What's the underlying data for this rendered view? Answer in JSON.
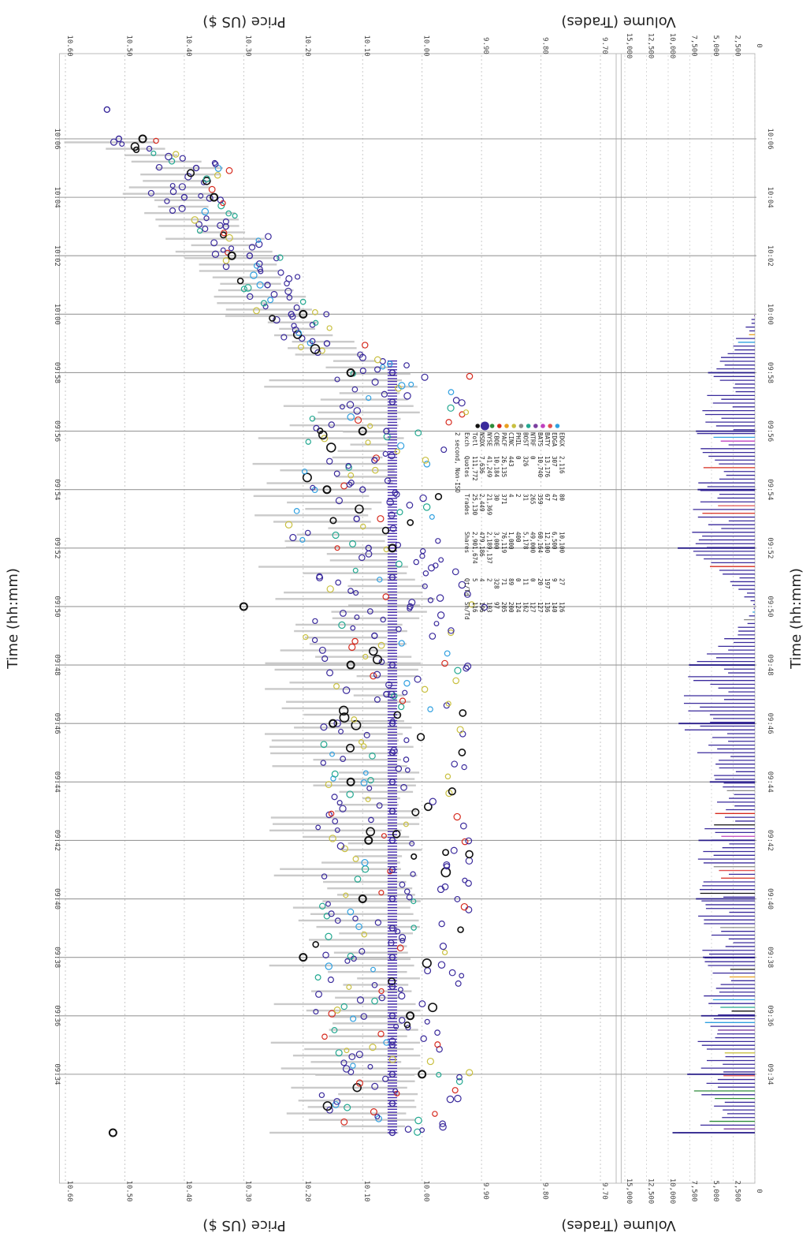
{
  "labels": {
    "price_axis": "Price (US $)",
    "volume_axis": "Volume (Trades)",
    "time_axis": "Time (hh:mm)"
  },
  "chart_data": {
    "type": "scatter",
    "orientation": "rotated-90-clockwise",
    "price_axis": {
      "label": "Price (US $)",
      "ticks": [
        "9.70",
        "9.80",
        "9.90",
        "10.00",
        "10.10",
        "10.20",
        "10.30",
        "10.40",
        "10.50",
        "10.60"
      ],
      "range": [
        9.66,
        10.61
      ]
    },
    "volume_axis": {
      "label": "Volume (Trades)",
      "ticks": [
        "0",
        "2,500",
        "5,000",
        "7,500",
        "10,000",
        "12,500",
        "15,000"
      ],
      "range": [
        0,
        16000
      ]
    },
    "time_axis": {
      "label": "Time (hh:mm)",
      "ticks": [
        "09:34",
        "09:36",
        "09:38",
        "09:40",
        "09:42",
        "09:44",
        "09:46",
        "09:48",
        "09:50",
        "09:52",
        "09:54",
        "09:56",
        "09:58",
        "10:00",
        "10:02",
        "10:04",
        "10:06"
      ],
      "range_minutes": [
        572.0,
        607.2
      ]
    },
    "grid": true,
    "legend_placement": "upper-middle (rotated)",
    "legend": {
      "title": "2 second, Non-ISO",
      "columns": [
        "Exch",
        "Quotes",
        "Trades",
        "Shares",
        "Qt/Td",
        "Sh/Td"
      ],
      "rows": [
        {
          "exch": "Totl",
          "quotes": "111,772",
          "trades": "25,130",
          "shares": "2,901,674",
          "qt_td": "5",
          "sh_td": "116",
          "color": ""
        },
        {
          "exch": "NSDX",
          "quotes": "7,636",
          "trades": "2,449",
          "shares": "479,186",
          "qt_td": "4",
          "sh_td": "196",
          "color": "#111111"
        },
        {
          "exch": "NYSE",
          "quotes": "41,249",
          "trades": "21,369",
          "shares": "2,189,137",
          "qt_td": "2",
          "sh_td": "103",
          "color": "#3a2a9c"
        },
        {
          "exch": "CBOE",
          "quotes": "10,184",
          "trades": "30",
          "shares": "3,000",
          "qt_td": "328",
          "sh_td": "97",
          "color": "#2e8b3a"
        },
        {
          "exch": "PACF",
          "quotes": "26,135",
          "trades": "371",
          "shares": "76,119",
          "qt_td": "71",
          "sh_td": "205",
          "color": "#d62a1e"
        },
        {
          "exch": "CINC",
          "quotes": "443",
          "trades": "4",
          "shares": "1,000",
          "qt_td": "89",
          "sh_td": "200",
          "color": "#e8a020"
        },
        {
          "exch": "PHIL",
          "quotes": "0",
          "trades": "2",
          "shares": "400",
          "qt_td": "0",
          "sh_td": "124",
          "color": "#c9c040"
        },
        {
          "exch": "BOST",
          "quotes": "326",
          "trades": "31",
          "shares": "5,178",
          "qt_td": "11",
          "sh_td": "162",
          "color": "#888888"
        },
        {
          "exch": "NTRF",
          "quotes": "0",
          "trades": "265",
          "shares": "49,000",
          "qt_td": "0",
          "sh_td": "127",
          "color": "#22a890"
        },
        {
          "exch": "BATS",
          "quotes": "10,740",
          "trades": "359",
          "shares": "60,164",
          "qt_td": "20",
          "sh_td": "127",
          "color": "#7b3fa0"
        },
        {
          "exch": "BATY",
          "quotes": "13,176",
          "trades": "67",
          "shares": "12,100",
          "qt_td": "197",
          "sh_td": "136",
          "color": "#c040c0"
        },
        {
          "exch": "EDGA",
          "quotes": "307",
          "trades": "47",
          "shares": "6,500",
          "qt_td": "9",
          "sh_td": "140",
          "color": "#e05050"
        },
        {
          "exch": "EDGX",
          "quotes": "2,116",
          "trades": "80",
          "shares": "10,100",
          "qt_td": "27",
          "sh_td": "126",
          "color": "#30a0e0"
        }
      ]
    },
    "series": [
      {
        "name": "NYSE",
        "color": "#3a2a9c",
        "x": [
          "09:32",
          "09:33",
          "09:34",
          "09:35",
          "09:36",
          "09:37",
          "09:38",
          "09:39",
          "09:40",
          "09:41",
          "09:42",
          "09:43",
          "09:44",
          "09:45",
          "09:46",
          "09:47",
          "09:48",
          "09:49",
          "09:50",
          "09:51",
          "09:52",
          "09:53",
          "09:54",
          "09:55",
          "09:56",
          "09:57",
          "09:58",
          "09:59",
          "10:00",
          "10:01",
          "10:02",
          "10:03",
          "10:04",
          "10:05",
          "10:06",
          "10:07"
        ],
        "y": [
          10.05,
          10.05,
          10.05,
          10.05,
          10.05,
          10.05,
          10.05,
          10.05,
          10.05,
          10.05,
          10.05,
          10.05,
          10.05,
          10.05,
          10.05,
          10.06,
          10.05,
          10.08,
          10.02,
          10.05,
          10.09,
          10.11,
          10.1,
          10.08,
          10.06,
          10.05,
          10.05,
          10.16,
          10.22,
          10.26,
          10.29,
          10.33,
          10.4,
          10.38,
          10.51,
          10.53
        ]
      },
      {
        "name": "NSDX",
        "color": "#111111",
        "x": [
          "09:32",
          "09:34",
          "09:36",
          "09:38",
          "09:40",
          "09:42",
          "09:44",
          "09:46",
          "09:48",
          "09:50",
          "09:52",
          "09:54",
          "09:56",
          "09:58",
          "10:00",
          "10:02",
          "10:04",
          "10:06"
        ],
        "y": [
          10.52,
          10.0,
          10.02,
          10.2,
          10.1,
          10.09,
          10.12,
          10.15,
          10.12,
          10.3,
          10.05,
          10.16,
          10.1,
          10.12,
          10.2,
          10.32,
          10.35,
          10.47
        ]
      },
      {
        "name": "Volume",
        "color": "#3a2a9c",
        "x": [
          "09:32",
          "09:34",
          "09:36",
          "09:38",
          "09:40",
          "09:42",
          "09:44",
          "09:46",
          "09:48",
          "09:50",
          "09:52",
          "09:54",
          "09:56",
          "09:58",
          "10:00",
          "10:02",
          "10:04",
          "10:06"
        ],
        "y": [
          9500,
          7800,
          6200,
          6000,
          6800,
          6500,
          5200,
          8800,
          7600,
          0,
          8900,
          6600,
          6800,
          5400,
          0,
          0,
          0,
          0
        ]
      }
    ]
  }
}
